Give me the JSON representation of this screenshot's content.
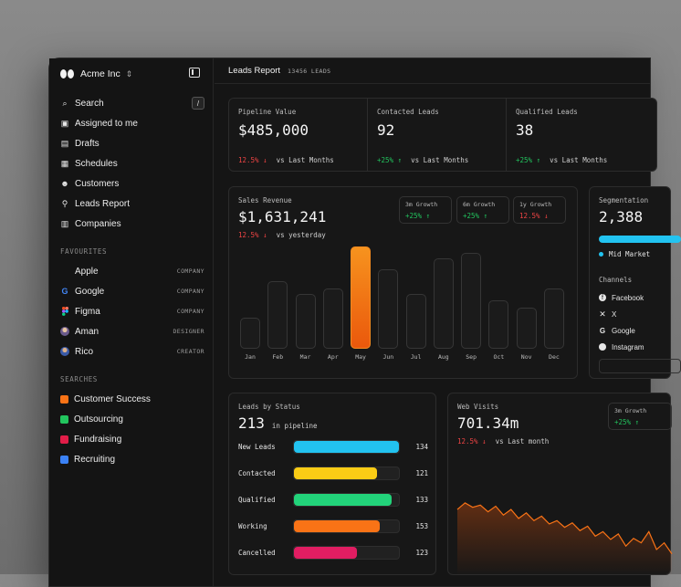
{
  "sidebar": {
    "brand": "Acme Inc",
    "nav": [
      {
        "label": "Search",
        "icon": "search-icon",
        "shortcut": "/"
      },
      {
        "label": "Assigned to me",
        "icon": "inbox-icon"
      },
      {
        "label": "Drafts",
        "icon": "file-icon"
      },
      {
        "label": "Schedules",
        "icon": "calendar-icon"
      },
      {
        "label": "Customers",
        "icon": "users-icon"
      },
      {
        "label": "Leads Report",
        "icon": "network-icon"
      },
      {
        "label": "Companies",
        "icon": "building-icon"
      }
    ],
    "favourites_label": "FAVOURITES",
    "favourites": [
      {
        "label": "Apple",
        "tag": "COMPANY",
        "icon": "apple-icon"
      },
      {
        "label": "Google",
        "tag": "COMPANY",
        "icon": "google-icon"
      },
      {
        "label": "Figma",
        "tag": "COMPANY",
        "icon": "figma-icon"
      },
      {
        "label": "Aman",
        "tag": "DESIGNER",
        "icon": "avatar-icon"
      },
      {
        "label": "Rico",
        "tag": "CREATOR",
        "icon": "avatar-icon"
      }
    ],
    "searches_label": "SEARCHES",
    "searches": [
      {
        "label": "Customer Success",
        "color": "#f97316"
      },
      {
        "label": "Outsourcing",
        "color": "#22c55e"
      },
      {
        "label": "Fundraising",
        "color": "#e11d48"
      },
      {
        "label": "Recruiting",
        "color": "#3b82f6"
      }
    ]
  },
  "header": {
    "title": "Leads Report",
    "count": "13456 LEADS"
  },
  "metrics": [
    {
      "label": "Pipeline Value",
      "value": "$485,000",
      "delta": "12.5% ↓",
      "direction": "down",
      "vs": "vs Last Months"
    },
    {
      "label": "Contacted Leads",
      "value": "92",
      "delta": "+25% ↑",
      "direction": "up",
      "vs": "vs Last Months"
    },
    {
      "label": "Qualified Leads",
      "value": "38",
      "delta": "+25% ↑",
      "direction": "up",
      "vs": "vs Last Months"
    }
  ],
  "sales": {
    "label": "Sales Revenue",
    "value": "$1,631,241",
    "delta": "12.5% ↓",
    "vs": "vs yesterday",
    "growth": [
      {
        "label": "3m Growth",
        "value": "+25% ↑",
        "direction": "up"
      },
      {
        "label": "6m Growth",
        "value": "+25% ↑",
        "direction": "up"
      },
      {
        "label": "1y Growth",
        "value": "12.5% ↓",
        "direction": "down"
      }
    ]
  },
  "chart_data": {
    "type": "bar",
    "categories": [
      "Jan",
      "Feb",
      "Mar",
      "Apr",
      "May",
      "Jun",
      "Jul",
      "Aug",
      "Sep",
      "Oct",
      "Nov",
      "Dec"
    ],
    "values": [
      30,
      66,
      54,
      59,
      100,
      78,
      54,
      88,
      94,
      47,
      40,
      59
    ],
    "highlight": "May",
    "ylim": [
      0,
      100
    ]
  },
  "segmentation": {
    "label": "Segmentation",
    "value": "2,388",
    "legend": "Mid Market",
    "channels_label": "Channels",
    "channels": [
      {
        "label": "Facebook",
        "icon": "facebook-icon"
      },
      {
        "label": "X",
        "icon": "x-icon"
      },
      {
        "label": "Google",
        "icon": "google-icon"
      },
      {
        "label": "Instagram",
        "icon": "instagram-icon"
      }
    ]
  },
  "status": {
    "label": "Leads by Status",
    "value": "213",
    "suffix": "in pipeline",
    "rows": [
      {
        "name": "New Leads",
        "value": 134,
        "fraction": 1.0,
        "color": "#22c3f0"
      },
      {
        "name": "Contacted",
        "value": 121,
        "fraction": 0.79,
        "color": "#facc15"
      },
      {
        "name": "Qualified",
        "value": 133,
        "fraction": 0.93,
        "color": "#22d37a"
      },
      {
        "name": "Working",
        "value": 153,
        "fraction": 0.82,
        "color": "#f97316"
      },
      {
        "name": "Cancelled",
        "value": 123,
        "fraction": 0.6,
        "color": "#e11d62"
      }
    ]
  },
  "visits": {
    "label": "Web Visits",
    "value": "701.34m",
    "delta": "12.5% ↓",
    "vs": "vs Last month",
    "growth_label": "3m Growth",
    "growth_value": "+25% ↑",
    "series": [
      60,
      66,
      62,
      64,
      58,
      63,
      55,
      60,
      52,
      57,
      50,
      54,
      47,
      50,
      44,
      48,
      41,
      45,
      36,
      40,
      33,
      38,
      27,
      34,
      30,
      40,
      24,
      30,
      20
    ]
  }
}
